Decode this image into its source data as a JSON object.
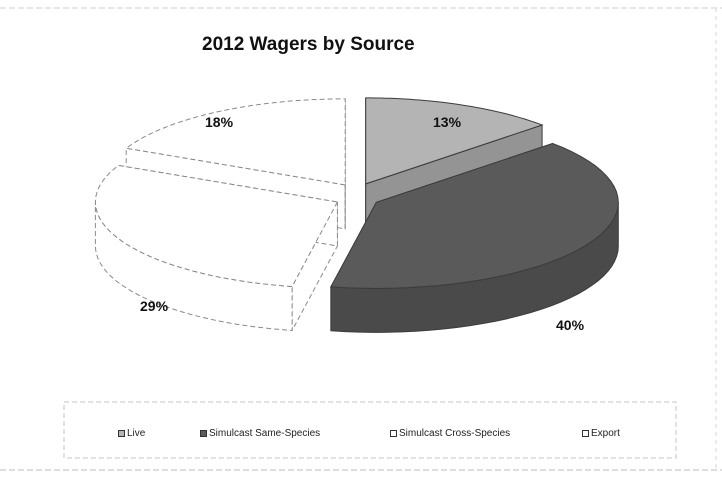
{
  "chart_data": {
    "type": "pie",
    "style": "3d-exploded",
    "title": "2012 Wagers by Source",
    "slices": [
      {
        "name": "Live",
        "value": 13,
        "label": "13%",
        "color": "#b4b4b4"
      },
      {
        "name": "Simulcast Same-Species",
        "value": 40,
        "label": "40%",
        "color": "#5a5a5a"
      },
      {
        "name": "Simulcast Cross-Species",
        "value": 29,
        "label": "29%",
        "color": "#ffffff"
      },
      {
        "name": "Export",
        "value": 18,
        "label": "18%",
        "color": "#ffffff"
      }
    ],
    "legend_position": "bottom"
  },
  "legend": [
    {
      "label": "Live",
      "color": "#b4b4b4"
    },
    {
      "label": "Simulcast Same-Species",
      "color": "#5a5a5a"
    },
    {
      "label": "Simulcast Cross-Species",
      "color": "#ffffff"
    },
    {
      "label": "Export",
      "color": "#ffffff"
    }
  ]
}
